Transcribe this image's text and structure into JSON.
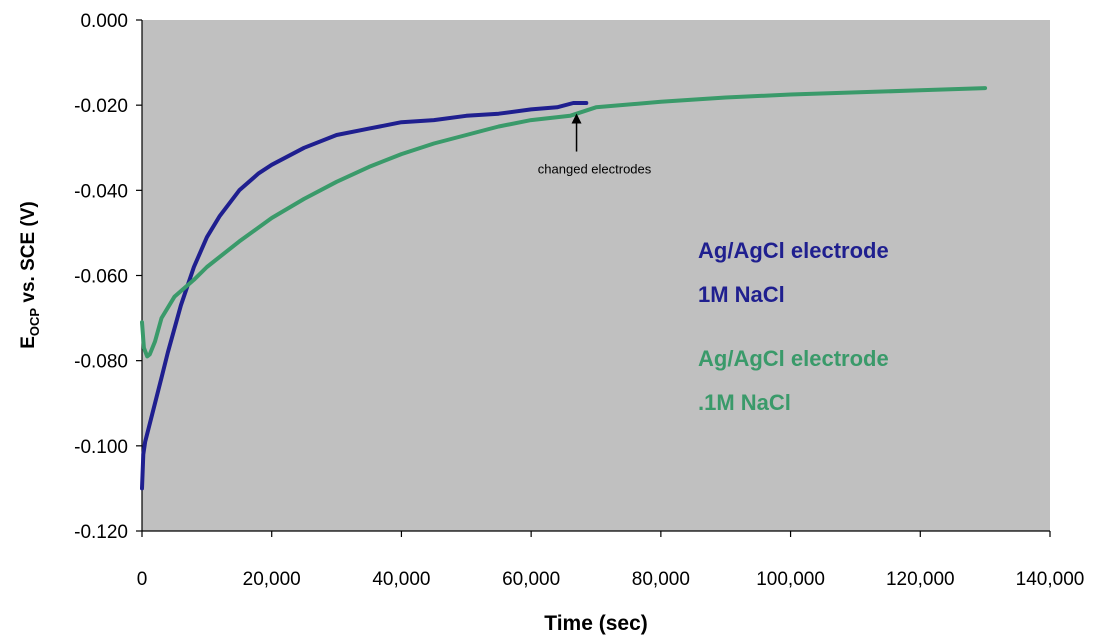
{
  "chart_data": {
    "type": "line",
    "title": "",
    "xlabel": "Time (sec)",
    "ylabel": {
      "prefix": "E",
      "subscript": "OCP",
      "suffix": " vs. SCE (V)"
    },
    "xlim": [
      0,
      140000
    ],
    "ylim": [
      -0.12,
      0
    ],
    "x_ticks": [
      0,
      20000,
      40000,
      60000,
      80000,
      100000,
      120000,
      140000
    ],
    "x_tick_labels": [
      "0",
      "20,000",
      "40,000",
      "60,000",
      "80,000",
      "100,000",
      "120,000",
      "140,000"
    ],
    "y_ticks": [
      0,
      -0.02,
      -0.04,
      -0.06,
      -0.08,
      -0.1,
      -0.12
    ],
    "y_tick_labels": [
      "0.000",
      "-0.020",
      "-0.040",
      "-0.060",
      "-0.080",
      "-0.100",
      "-0.120"
    ],
    "grid": false,
    "plot_background": "#c0c0c0",
    "series": [
      {
        "label_lines": [
          "Ag/AgCl electrode",
          "1M NaCl"
        ],
        "color": "#1f1f8f",
        "x": [
          0,
          200,
          500,
          1000,
          2000,
          3000,
          4000,
          6000,
          8000,
          10000,
          12000,
          15000,
          18000,
          20000,
          25000,
          30000,
          35000,
          40000,
          45000,
          50000,
          55000,
          60000,
          64000,
          66500,
          68500
        ],
        "y": [
          -0.11,
          -0.102,
          -0.099,
          -0.096,
          -0.09,
          -0.084,
          -0.078,
          -0.067,
          -0.058,
          -0.051,
          -0.046,
          -0.04,
          -0.036,
          -0.034,
          -0.03,
          -0.027,
          -0.0255,
          -0.024,
          -0.0235,
          -0.0225,
          -0.022,
          -0.021,
          -0.0205,
          -0.0195,
          -0.0195
        ]
      },
      {
        "label_lines": [
          "Ag/AgCl electrode",
          ".1M NaCl"
        ],
        "color": "#3a9a6a",
        "x": [
          0,
          300,
          800,
          1200,
          2000,
          3000,
          5000,
          8000,
          10000,
          15000,
          20000,
          25000,
          30000,
          35000,
          40000,
          45000,
          50000,
          55000,
          60000,
          66000,
          70000,
          80000,
          90000,
          100000,
          110000,
          120000,
          130000
        ],
        "y": [
          -0.071,
          -0.077,
          -0.079,
          -0.0785,
          -0.0755,
          -0.07,
          -0.065,
          -0.061,
          -0.058,
          -0.052,
          -0.0465,
          -0.042,
          -0.038,
          -0.0345,
          -0.0315,
          -0.029,
          -0.027,
          -0.025,
          -0.0235,
          -0.0225,
          -0.0205,
          -0.0192,
          -0.0182,
          -0.0175,
          -0.017,
          -0.0165,
          -0.016
        ]
      }
    ],
    "annotations": [
      {
        "text": "changed electrodes",
        "x": 67000,
        "y": -0.0215
      }
    ]
  }
}
